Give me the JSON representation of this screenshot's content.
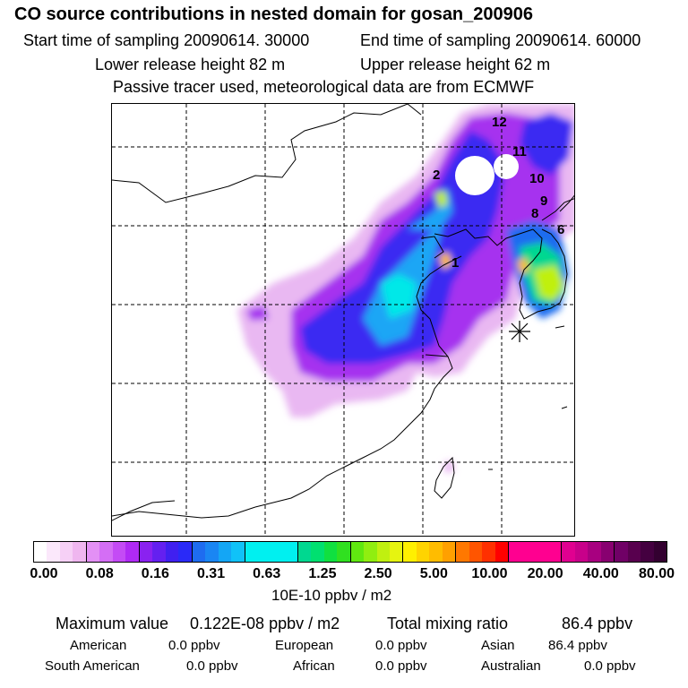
{
  "header": {
    "title": "CO  source contributions in nested domain for gosan_200906",
    "start_time": "Start time of sampling 20090614. 30000",
    "end_time": "End time of sampling 20090614. 60000",
    "lower_release": "Lower release height   82 m",
    "upper_release": "Upper release height   62 m",
    "tracer_note": "Passive tracer used, meteorological data are from ECMWF"
  },
  "map": {
    "receptor_marker": "asterisk",
    "area_labels": [
      "12",
      "11",
      "10",
      "9",
      "8",
      "2",
      "6",
      "1"
    ]
  },
  "legend": {
    "tick_labels": [
      "0.00",
      "0.08",
      "0.16",
      "0.31",
      "0.63",
      "1.25",
      "2.50",
      "5.00",
      "10.00",
      "20.00",
      "40.00",
      "80.00"
    ],
    "units": "10E-10 ppbv / m2",
    "segments": [
      [
        "#ffffff",
        "#fbe8fb",
        "#f6d0f6",
        "#efb6ef"
      ],
      [
        "#e390f5",
        "#d46ef5",
        "#c44bf5",
        "#b02af5"
      ],
      [
        "#8a22f0",
        "#6420f0",
        "#4020f0",
        "#2a2af8"
      ],
      [
        "#1e6cf0",
        "#1a86f3",
        "#14a6f5",
        "#10c2f8"
      ],
      [
        "#00f0f0",
        "#00f0f0",
        "#00f0f0",
        "#00f0f0"
      ],
      [
        "#00d890",
        "#00e070",
        "#10e040",
        "#30e020"
      ],
      [
        "#60e810",
        "#90ee10",
        "#c0f010",
        "#e6f410"
      ],
      [
        "#fff000",
        "#ffd400",
        "#ffbc00",
        "#ffa000"
      ],
      [
        "#ff7800",
        "#ff5500",
        "#ff3000",
        "#ff0000"
      ],
      [
        "#ff0090",
        "#ff0090",
        "#ff0090",
        "#ff0090"
      ],
      [
        "#e00090",
        "#c8008a",
        "#a80080",
        "#880070"
      ],
      [
        "#700066",
        "#58004e",
        "#440040",
        "#330030"
      ]
    ]
  },
  "summary": {
    "max_label": "Maximum value",
    "max_value": "0.122E-08 ppbv / m2",
    "total_label": "Total mixing ratio",
    "total_value": "86.4 ppbv",
    "regions": [
      {
        "name": "American",
        "value": "0.0 ppbv"
      },
      {
        "name": "European",
        "value": "0.0 ppbv"
      },
      {
        "name": "Asian",
        "value": "86.4 ppbv"
      },
      {
        "name": "South American",
        "value": "0.0 ppbv"
      },
      {
        "name": "African",
        "value": "0.0 ppbv"
      },
      {
        "name": "Australian",
        "value": "0.0 ppbv"
      }
    ]
  }
}
